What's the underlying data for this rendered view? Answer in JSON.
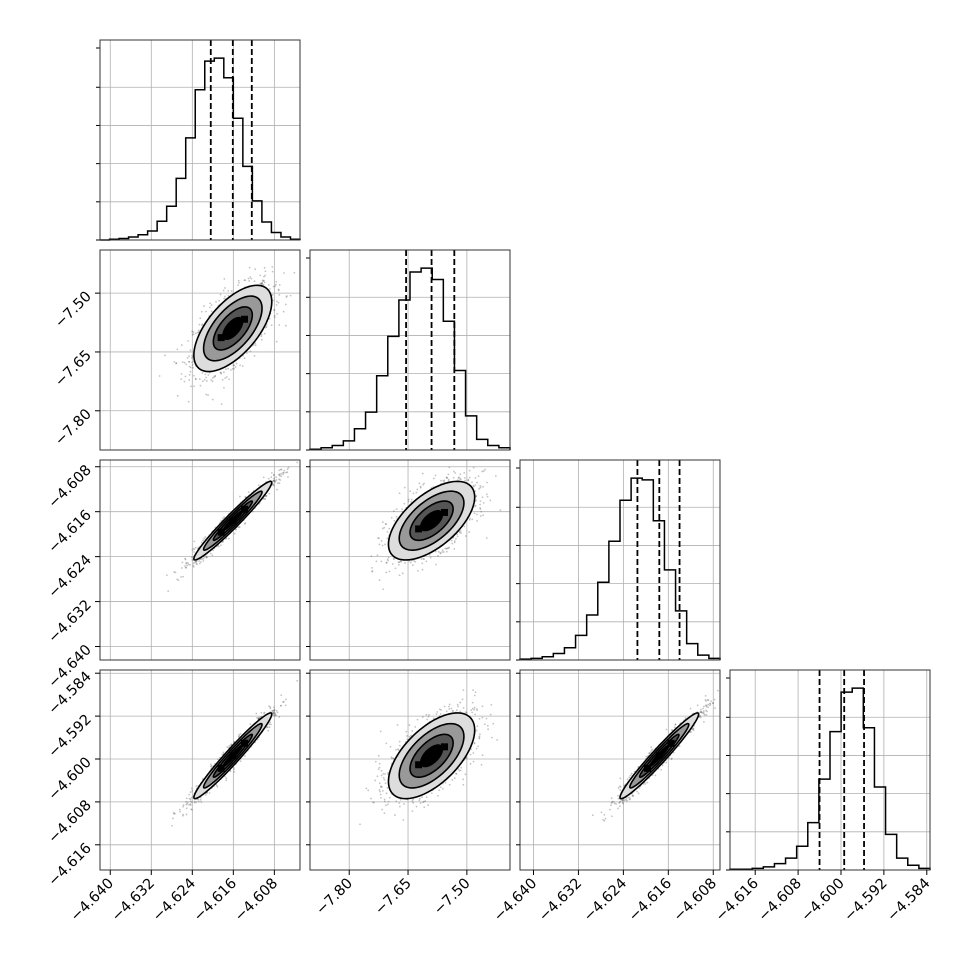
{
  "chart_data": {
    "type": "corner",
    "parameters": [
      {
        "key": "p0",
        "range": [
          -4.642,
          -4.603
        ],
        "quantiles": [
          -4.6204,
          -4.6161,
          -4.6124
        ],
        "ticks": [
          -4.64,
          -4.632,
          -4.624,
          -4.616,
          -4.608
        ],
        "tick_labels": [
          "−4.640",
          "−4.632",
          "−4.624",
          "−4.616",
          "−4.608"
        ]
      },
      {
        "key": "p1",
        "range": [
          -7.9,
          -7.39
        ],
        "quantiles": [
          -7.655,
          -7.59,
          -7.532
        ],
        "ticks": [
          -7.8,
          -7.65,
          -7.5
        ],
        "tick_labels": [
          "−7.80",
          "−7.65",
          "−7.50"
        ]
      },
      {
        "key": "p2",
        "range": [
          -4.6424,
          -4.6068
        ],
        "quantiles": [
          -4.6215,
          -4.6176,
          -4.614
        ],
        "ticks": [
          -4.64,
          -4.632,
          -4.624,
          -4.616,
          -4.608
        ],
        "tick_labels": [
          "−4.640",
          "−4.632",
          "−4.624",
          "−4.616",
          "−4.608"
        ]
      },
      {
        "key": "p3",
        "range": [
          -4.6207,
          -4.5834
        ],
        "quantiles": [
          -4.604,
          -4.5994,
          -4.5957
        ],
        "ticks": [
          -4.616,
          -4.608,
          -4.6,
          -4.592,
          -4.584
        ],
        "tick_labels": [
          "−4.616",
          "−4.608",
          "−4.600",
          "−4.592",
          "−4.584"
        ]
      }
    ],
    "histograms": [
      {
        "param": 0,
        "counts": [
          0,
          1,
          2,
          4,
          7,
          12,
          25,
          45,
          82,
          136,
          200,
          238,
          242,
          216,
          162,
          98,
          52,
          24,
          10,
          4,
          1
        ]
      },
      {
        "param": 1,
        "counts": [
          1,
          3,
          6,
          12,
          28,
          50,
          98,
          150,
          198,
          235,
          240,
          225,
          170,
          105,
          45,
          14,
          6,
          3
        ]
      },
      {
        "param": 2,
        "counts": [
          1,
          2,
          4,
          8,
          15,
          30,
          55,
          95,
          145,
          195,
          222,
          220,
          170,
          110,
          60,
          20,
          6,
          2
        ]
      },
      {
        "param": 3,
        "counts": [
          1,
          1,
          2,
          4,
          8,
          15,
          30,
          60,
          115,
          175,
          225,
          230,
          180,
          105,
          45,
          15,
          6,
          2
        ]
      }
    ],
    "pairs": [
      {
        "x": 0,
        "y": 1,
        "mean": [
          -4.6161,
          -7.59
        ],
        "sigma": [
          0.0038,
          0.055
        ],
        "rho": 0.62
      },
      {
        "x": 0,
        "y": 2,
        "mean": [
          -4.6161,
          -4.6176
        ],
        "sigma": [
          0.0038,
          0.0035
        ],
        "rho": 0.97
      },
      {
        "x": 1,
        "y": 2,
        "mean": [
          -7.59,
          -4.6176
        ],
        "sigma": [
          0.055,
          0.0035
        ],
        "rho": 0.6
      },
      {
        "x": 0,
        "y": 3,
        "mean": [
          -4.6161,
          -4.5994
        ],
        "sigma": [
          0.0038,
          0.004
        ],
        "rho": 0.97
      },
      {
        "x": 1,
        "y": 3,
        "mean": [
          -7.59,
          -4.5994
        ],
        "sigma": [
          0.055,
          0.004
        ],
        "rho": 0.6
      },
      {
        "x": 2,
        "y": 3,
        "mean": [
          -4.6176,
          -4.5994
        ],
        "sigma": [
          0.0035,
          0.004
        ],
        "rho": 0.97
      }
    ],
    "contour_levels_sigma": [
      0.5,
      1.0,
      1.5,
      2.0
    ],
    "contour_fills": [
      "#000000",
      "#555555",
      "#999999",
      "#dddddd"
    ],
    "scatter_color": "#555555",
    "histogram_y_ticks": 5,
    "grid": true
  }
}
